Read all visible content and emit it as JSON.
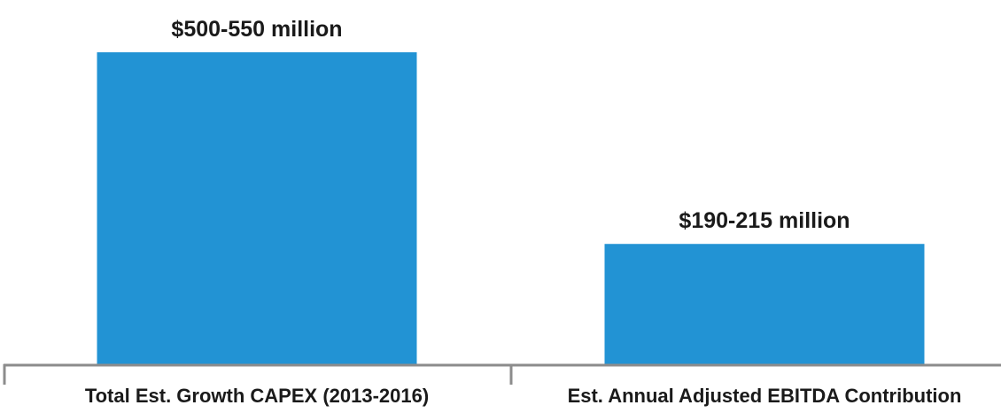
{
  "chart_data": {
    "type": "bar",
    "title": "",
    "xlabel": "",
    "ylabel": "",
    "categories": [
      "Total Est. Growth CAPEX (2013-2016)",
      "Est. Annual Adjusted EBITDA Contribution"
    ],
    "values": [
      525,
      202.5
    ],
    "data_labels": [
      "$500-550 million",
      "$190-215 million"
    ],
    "units": "million USD",
    "ylim": [
      0,
      550
    ],
    "grid": false,
    "legend": "none",
    "bar_color": "#2293d4",
    "axis_color": "#8c8c8c"
  }
}
